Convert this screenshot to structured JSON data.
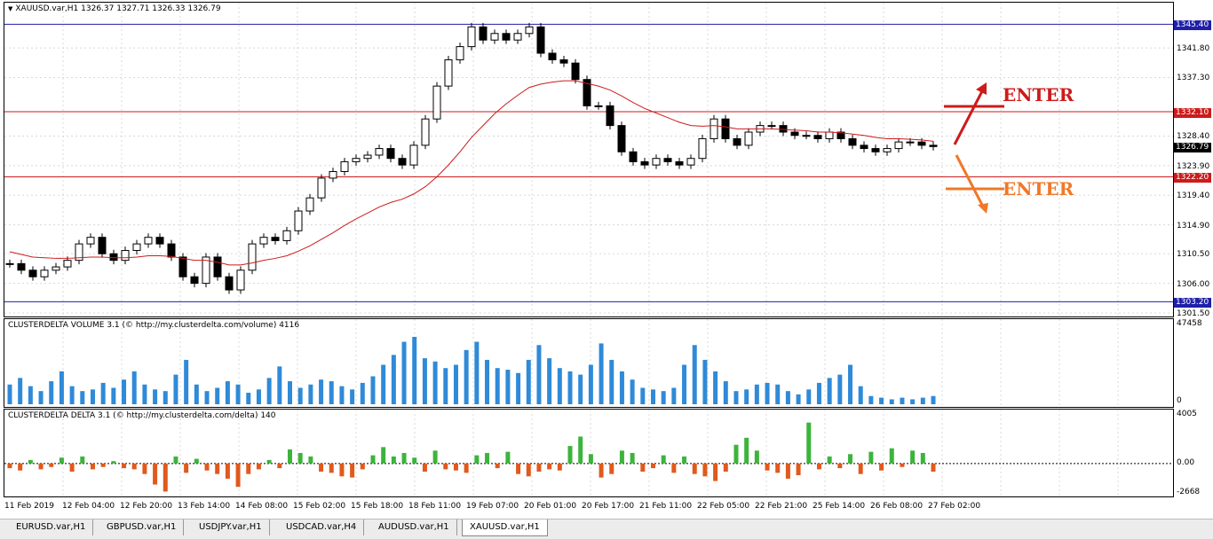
{
  "main_chart": {
    "title": "XAUUSD.var,H1  1326.37 1327.71 1326.33 1326.79",
    "y_labels": [
      "1345.40",
      "1341.80",
      "1337.30",
      "1332.10",
      "1328.40",
      "1326.79",
      "1323.90",
      "1322.20",
      "1319.40",
      "1314.90",
      "1310.50",
      "1306.00",
      "1303.20",
      "1301.50"
    ],
    "price_tags": [
      {
        "label": "1345.40",
        "color": "#1f1fa8"
      },
      {
        "label": "1332.10",
        "color": "#cc1b1b"
      },
      {
        "label": "1326.79",
        "color": "#000000"
      },
      {
        "label": "1322.20",
        "color": "#cc1b1b"
      },
      {
        "label": "1303.20",
        "color": "#1f1fa8"
      }
    ],
    "ylim": [
      1301.5,
      1346.8
    ],
    "horizontal_levels": [
      {
        "value": 1345.4,
        "color": "#1f1fa8"
      },
      {
        "value": 1332.1,
        "color": "#cc1b1b"
      },
      {
        "value": 1322.2,
        "color": "#cc1b1b"
      },
      {
        "value": 1303.2,
        "color": "#1f1fa8"
      }
    ],
    "annotations": [
      {
        "text": "ENTER",
        "color": "#cc1b1b"
      },
      {
        "text": "ENTER",
        "color": "#f07828"
      }
    ]
  },
  "chart_data": [
    {
      "type": "line",
      "ylim": [
        1301.5,
        1346.8
      ],
      "series": [
        {
          "values": [
            1309,
            1308,
            1307,
            1308,
            1308.5,
            1309.5,
            1312,
            1313,
            1310.5,
            1309.5,
            1311,
            1312,
            1313,
            1312,
            1310,
            1307,
            1306,
            1310,
            1307,
            1305,
            1308,
            1312,
            1313,
            1312.5,
            1314,
            1317,
            1319,
            1322,
            1323,
            1324.5,
            1325,
            1325.5,
            1326.5,
            1325,
            1324,
            1327,
            1331,
            1336,
            1340,
            1342,
            1345,
            1343,
            1344,
            1343,
            1344,
            1345,
            1341,
            1340,
            1339.5,
            1337,
            1333,
            1333,
            1330,
            1326,
            1324.5,
            1324,
            1325,
            1324.5,
            1324,
            1325,
            1328,
            1331,
            1328,
            1327,
            1329,
            1330,
            1330,
            1329,
            1328.5,
            1328.5,
            1328,
            1329,
            1328,
            1327,
            1326.5,
            1326,
            1326.5,
            1327.5,
            1327.5,
            1327,
            1326.8
          ]
        },
        {
          "values": [
            1310.8,
            1310.4,
            1310.0,
            1309.9,
            1309.8,
            1309.8,
            1309.9,
            1310.0,
            1310.0,
            1309.9,
            1309.9,
            1310.0,
            1310.2,
            1310.2,
            1310.1,
            1309.8,
            1309.5,
            1309.5,
            1309.2,
            1308.8,
            1308.8,
            1309.1,
            1309.5,
            1309.8,
            1310.2,
            1310.9,
            1311.7,
            1312.7,
            1313.7,
            1314.8,
            1315.8,
            1316.7,
            1317.6,
            1318.3,
            1318.8,
            1319.6,
            1320.7,
            1322.2,
            1324.0,
            1326.0,
            1328.2,
            1330.0,
            1331.8,
            1333.3,
            1334.6,
            1335.8,
            1336.3,
            1336.6,
            1336.8,
            1336.8,
            1336.4,
            1336.0,
            1335.4,
            1334.5,
            1333.5,
            1332.6,
            1331.9,
            1331.2,
            1330.5,
            1330.0,
            1329.9,
            1330.0,
            1329.8,
            1329.5,
            1329.5,
            1329.5,
            1329.5,
            1329.4,
            1329.3,
            1329.2,
            1329.0,
            1329.0,
            1328.9,
            1328.7,
            1328.5,
            1328.2,
            1328.0,
            1328.0,
            1327.9,
            1327.8,
            1327.6
          ]
        }
      ]
    },
    {
      "type": "bar",
      "title": "CLUSTERDELTA VOLUME 3.1 (© http://my.clusterdelta.com/volume) 4116",
      "ylim": [
        0,
        47458
      ],
      "y_labels": [
        "47458",
        "0"
      ],
      "values": [
        12000,
        16000,
        11000,
        8000,
        14000,
        20000,
        11000,
        8000,
        9000,
        13000,
        10000,
        15000,
        20000,
        12000,
        9000,
        8000,
        18000,
        27000,
        12000,
        8000,
        10000,
        14000,
        12000,
        7000,
        9000,
        16000,
        23000,
        14000,
        10000,
        12000,
        15000,
        14000,
        11000,
        9000,
        13000,
        17000,
        24000,
        30000,
        38000,
        41000,
        28000,
        26000,
        22000,
        24000,
        33000,
        38000,
        27000,
        22000,
        21000,
        19000,
        27000,
        36000,
        28000,
        22000,
        20000,
        18000,
        24000,
        37000,
        27000,
        20000,
        15000,
        10000,
        9000,
        8000,
        10000,
        24000,
        36000,
        27000,
        20000,
        14000,
        8000,
        9000,
        12000,
        13000,
        12000,
        8000,
        6000,
        9000,
        13000,
        16000,
        18000,
        24000,
        11000,
        5000,
        4000,
        3000,
        4000,
        3000,
        4000,
        5000
      ]
    },
    {
      "type": "bar",
      "title": "CLUSTERDELTA DELTA 3.1 (© http://my.clusterdelta.com/delta) 140",
      "ylim": [
        -2668,
        4005
      ],
      "y_labels": [
        "4005",
        "0.00",
        "-2668"
      ],
      "values": [
        -400,
        -600,
        300,
        -500,
        -300,
        500,
        -700,
        600,
        -500,
        -300,
        200,
        -400,
        -500,
        -900,
        -1800,
        -2400,
        600,
        -800,
        400,
        -600,
        -900,
        -1300,
        -2000,
        -900,
        -500,
        300,
        -400,
        1200,
        900,
        600,
        -700,
        -800,
        -1100,
        -1200,
        -500,
        700,
        1400,
        600,
        900,
        500,
        -700,
        1100,
        -500,
        -600,
        -800,
        700,
        900,
        -400,
        1000,
        -900,
        -1100,
        -700,
        -500,
        -600,
        1500,
        2300,
        800,
        -1200,
        -900,
        1100,
        900,
        -700,
        -400,
        700,
        -800,
        600,
        -900,
        -1100,
        -1500,
        -700,
        1600,
        2200,
        1100,
        -600,
        -800,
        -1300,
        -1000,
        3500,
        -500,
        600,
        -400,
        800,
        -900,
        1000,
        -600,
        1300,
        -300,
        1100,
        900,
        -700
      ]
    }
  ],
  "x_labels": [
    "11 Feb 2019",
    "12 Feb 04:00",
    "12 Feb 20:00",
    "13 Feb 14:00",
    "14 Feb 08:00",
    "15 Feb 02:00",
    "15 Feb 18:00",
    "18 Feb 11:00",
    "19 Feb 07:00",
    "20 Feb 01:00",
    "20 Feb 17:00",
    "21 Feb 11:00",
    "22 Feb 05:00",
    "22 Feb 21:00",
    "25 Feb 14:00",
    "26 Feb 08:00",
    "27 Feb 02:00"
  ],
  "tabs": [
    "EURUSD.var,H1",
    "GBPUSD.var,H1",
    "USDJPY.var,H1",
    "USDCAD.var,H4",
    "AUDUSD.var,H1",
    "XAUUSD.var,H1"
  ],
  "active_tab": 5,
  "colors": {
    "candle": "#000000",
    "ma": "#cc1b1b",
    "volume": "#2f8ad8",
    "delta_pos": "#3cb43c",
    "delta_neg": "#e0591d",
    "grid": "#d8d8d8"
  }
}
